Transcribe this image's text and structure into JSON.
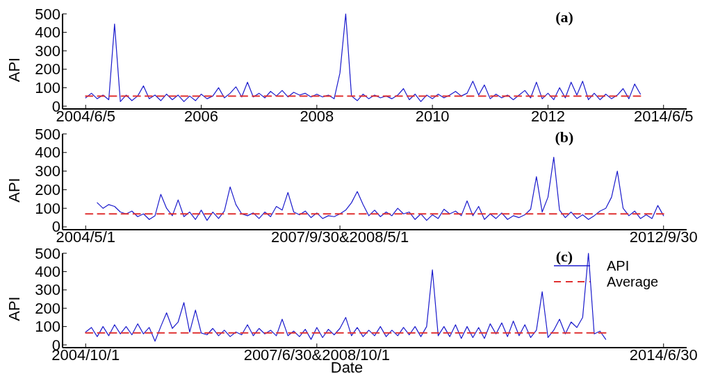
{
  "chart_data": [
    {
      "type": "line",
      "title": "(a)",
      "ylabel": "API",
      "ylim": [
        -15,
        500
      ],
      "yticks": [
        0,
        100,
        200,
        300,
        400,
        500
      ],
      "categories": [
        null,
        null,
        null,
        null,
        "2004/6/5",
        null,
        null,
        null,
        null,
        null,
        null,
        null,
        null,
        null,
        null,
        null,
        null,
        null,
        null,
        null,
        null,
        null,
        null,
        null,
        "2006",
        null,
        null,
        null,
        null,
        null,
        null,
        null,
        null,
        null,
        null,
        null,
        null,
        null,
        null,
        null,
        null,
        null,
        null,
        null,
        "2008",
        null,
        null,
        null,
        null,
        null,
        null,
        null,
        null,
        null,
        null,
        null,
        null,
        null,
        null,
        null,
        null,
        null,
        null,
        null,
        "2010",
        null,
        null,
        null,
        null,
        null,
        null,
        null,
        null,
        null,
        null,
        null,
        null,
        null,
        null,
        null,
        null,
        null,
        null,
        null,
        "2012",
        null,
        null,
        null,
        null,
        null,
        null,
        null,
        null,
        null,
        null,
        null,
        null,
        null,
        null,
        null,
        null,
        null,
        null,
        null,
        "2014/6/5",
        null,
        null,
        null,
        null
      ],
      "series": [
        {
          "color": "#1a1acc",
          "line_style": "solid",
          "values": [
            null,
            null,
            null,
            null,
            45,
            70,
            40,
            60,
            35,
            445,
            25,
            60,
            30,
            55,
            110,
            40,
            60,
            30,
            65,
            35,
            60,
            25,
            55,
            30,
            65,
            40,
            55,
            100,
            45,
            70,
            105,
            50,
            130,
            50,
            70,
            45,
            80,
            55,
            85,
            50,
            75,
            60,
            70,
            50,
            65,
            50,
            60,
            40,
            180,
            500,
            55,
            30,
            65,
            40,
            60,
            45,
            55,
            40,
            60,
            95,
            35,
            65,
            25,
            60,
            40,
            65,
            45,
            60,
            80,
            55,
            70,
            135,
            60,
            115,
            40,
            65,
            45,
            60,
            35,
            60,
            85,
            45,
            130,
            40,
            70,
            35,
            100,
            45,
            130,
            60,
            135,
            35,
            70,
            35,
            65,
            40,
            60,
            95,
            40,
            120,
            65,
            null,
            null,
            null,
            null,
            null,
            null,
            null,
            null
          ]
        },
        {
          "color": "#e03030",
          "line_style": "dashed",
          "values": [
            null,
            null,
            null,
            null,
            55,
            55,
            55,
            55,
            55,
            55,
            55,
            55,
            55,
            55,
            55,
            55,
            55,
            55,
            55,
            55,
            55,
            55,
            55,
            55,
            55,
            55,
            55,
            55,
            55,
            55,
            55,
            55,
            55,
            55,
            55,
            55,
            55,
            55,
            55,
            55,
            55,
            55,
            55,
            55,
            55,
            55,
            55,
            55,
            55,
            55,
            55,
            55,
            55,
            55,
            55,
            55,
            55,
            55,
            55,
            55,
            55,
            55,
            55,
            55,
            55,
            55,
            55,
            55,
            55,
            55,
            55,
            55,
            55,
            55,
            55,
            55,
            55,
            55,
            55,
            55,
            55,
            55,
            55,
            55,
            55,
            55,
            55,
            55,
            55,
            55,
            55,
            55,
            55,
            55,
            55,
            55,
            55,
            55,
            55,
            55,
            55,
            null,
            null,
            null,
            null,
            null,
            null,
            null,
            null
          ]
        }
      ]
    },
    {
      "type": "line",
      "title": "(b)",
      "ylabel": "API",
      "ylim": [
        -15,
        500
      ],
      "yticks": [
        0,
        100,
        200,
        300,
        400,
        500
      ],
      "categories": [
        null,
        null,
        null,
        null,
        "2004/5/1",
        null,
        null,
        null,
        null,
        null,
        null,
        null,
        null,
        null,
        null,
        null,
        null,
        null,
        null,
        null,
        null,
        null,
        null,
        null,
        null,
        null,
        null,
        null,
        null,
        null,
        null,
        null,
        null,
        null,
        null,
        null,
        null,
        null,
        null,
        null,
        null,
        null,
        null,
        null,
        null,
        null,
        null,
        null,
        "2007/9/30&2008/5/1",
        null,
        null,
        null,
        null,
        null,
        null,
        null,
        null,
        null,
        null,
        null,
        null,
        null,
        null,
        null,
        null,
        null,
        null,
        null,
        null,
        null,
        null,
        null,
        null,
        null,
        null,
        null,
        null,
        null,
        null,
        null,
        null,
        null,
        null,
        null,
        null,
        null,
        null,
        null,
        null,
        null,
        null,
        null,
        null,
        null,
        null,
        null,
        null,
        null,
        null,
        null,
        null,
        null,
        null,
        null,
        "2012/9/30",
        null,
        null,
        null,
        null
      ],
      "series": [
        {
          "color": "#1a1acc",
          "line_style": "solid",
          "values": [
            null,
            null,
            null,
            null,
            null,
            null,
            130,
            100,
            120,
            110,
            80,
            70,
            85,
            55,
            70,
            40,
            60,
            175,
            100,
            60,
            145,
            55,
            80,
            40,
            90,
            35,
            80,
            45,
            85,
            215,
            120,
            70,
            60,
            75,
            45,
            80,
            55,
            110,
            90,
            185,
            80,
            65,
            85,
            50,
            75,
            45,
            60,
            55,
            70,
            90,
            130,
            190,
            120,
            60,
            90,
            55,
            80,
            60,
            100,
            70,
            80,
            40,
            70,
            35,
            65,
            45,
            95,
            70,
            85,
            60,
            140,
            60,
            110,
            40,
            70,
            45,
            75,
            40,
            60,
            50,
            65,
            95,
            270,
            80,
            160,
            375,
            90,
            50,
            80,
            45,
            65,
            40,
            60,
            85,
            100,
            160,
            300,
            100,
            60,
            85,
            45,
            65,
            45,
            115,
            60,
            null,
            null,
            null,
            null
          ]
        },
        {
          "color": "#e03030",
          "line_style": "dashed",
          "values": [
            null,
            null,
            null,
            null,
            70,
            70,
            70,
            70,
            70,
            70,
            70,
            70,
            70,
            70,
            70,
            70,
            70,
            70,
            70,
            70,
            70,
            70,
            70,
            70,
            70,
            70,
            70,
            70,
            70,
            70,
            70,
            70,
            70,
            70,
            70,
            70,
            70,
            70,
            70,
            70,
            70,
            70,
            70,
            70,
            70,
            70,
            70,
            70,
            70,
            70,
            70,
            70,
            70,
            70,
            70,
            70,
            70,
            70,
            70,
            70,
            70,
            70,
            70,
            70,
            70,
            70,
            70,
            70,
            70,
            70,
            70,
            70,
            70,
            70,
            70,
            70,
            70,
            70,
            70,
            70,
            70,
            70,
            70,
            70,
            70,
            70,
            70,
            70,
            70,
            70,
            70,
            70,
            70,
            70,
            70,
            70,
            70,
            70,
            70,
            70,
            70,
            70,
            70,
            70,
            70,
            null,
            null,
            null,
            null
          ]
        }
      ]
    },
    {
      "type": "line",
      "title": "(c)",
      "ylabel": "API",
      "xlabel": "Date",
      "legend": "top right",
      "ylim": [
        -15,
        500
      ],
      "yticks": [
        0,
        100,
        200,
        300,
        400,
        500
      ],
      "categories": [
        null,
        null,
        null,
        null,
        "2004/10/1",
        null,
        null,
        null,
        null,
        null,
        null,
        null,
        null,
        null,
        null,
        null,
        null,
        null,
        null,
        null,
        null,
        null,
        null,
        null,
        null,
        null,
        null,
        null,
        null,
        null,
        null,
        null,
        null,
        null,
        null,
        null,
        null,
        null,
        null,
        null,
        null,
        null,
        null,
        null,
        "2007/6/30&2008/10/1",
        null,
        null,
        null,
        null,
        null,
        null,
        null,
        null,
        null,
        null,
        null,
        null,
        null,
        null,
        null,
        null,
        null,
        null,
        null,
        null,
        null,
        null,
        null,
        null,
        null,
        null,
        null,
        null,
        null,
        null,
        null,
        null,
        null,
        null,
        null,
        null,
        null,
        null,
        null,
        null,
        null,
        null,
        null,
        null,
        null,
        null,
        null,
        null,
        null,
        null,
        null,
        null,
        null,
        null,
        null,
        null,
        null,
        null,
        null,
        "2014/6/30",
        null,
        null,
        null,
        null
      ],
      "series": [
        {
          "name": "API",
          "color": "#1a1acc",
          "line_style": "solid",
          "values": [
            null,
            null,
            null,
            null,
            70,
            95,
            45,
            100,
            50,
            110,
            60,
            100,
            55,
            115,
            60,
            95,
            20,
            100,
            175,
            90,
            125,
            231,
            70,
            190,
            65,
            55,
            90,
            50,
            80,
            45,
            70,
            55,
            110,
            50,
            90,
            60,
            80,
            50,
            140,
            50,
            75,
            45,
            85,
            30,
            95,
            40,
            85,
            55,
            90,
            150,
            50,
            95,
            45,
            80,
            50,
            100,
            45,
            80,
            50,
            95,
            55,
            100,
            45,
            100,
            410,
            50,
            100,
            45,
            110,
            35,
            100,
            40,
            95,
            35,
            115,
            60,
            120,
            45,
            130,
            50,
            110,
            40,
            80,
            290,
            40,
            80,
            140,
            60,
            125,
            95,
            150,
            500,
            60,
            75,
            30,
            null,
            null,
            null,
            null,
            null,
            null,
            null,
            null,
            null,
            null,
            null,
            null,
            null,
            null
          ]
        },
        {
          "name": "Average",
          "color": "#e03030",
          "line_style": "dashed",
          "values": [
            null,
            null,
            null,
            null,
            65,
            65,
            65,
            65,
            65,
            65,
            65,
            65,
            65,
            65,
            65,
            65,
            65,
            65,
            65,
            65,
            65,
            65,
            65,
            65,
            65,
            65,
            65,
            65,
            65,
            65,
            65,
            65,
            65,
            65,
            65,
            65,
            65,
            65,
            65,
            65,
            65,
            65,
            65,
            65,
            65,
            65,
            65,
            65,
            65,
            65,
            65,
            65,
            65,
            65,
            65,
            65,
            65,
            65,
            65,
            65,
            65,
            65,
            65,
            65,
            65,
            65,
            65,
            65,
            65,
            65,
            65,
            65,
            65,
            65,
            65,
            65,
            65,
            65,
            65,
            65,
            65,
            65,
            65,
            65,
            65,
            65,
            65,
            65,
            65,
            65,
            65,
            65,
            65,
            65,
            65,
            null,
            null,
            null,
            null,
            null,
            null,
            null,
            null,
            null,
            null,
            null,
            null,
            null,
            null
          ]
        }
      ]
    }
  ]
}
